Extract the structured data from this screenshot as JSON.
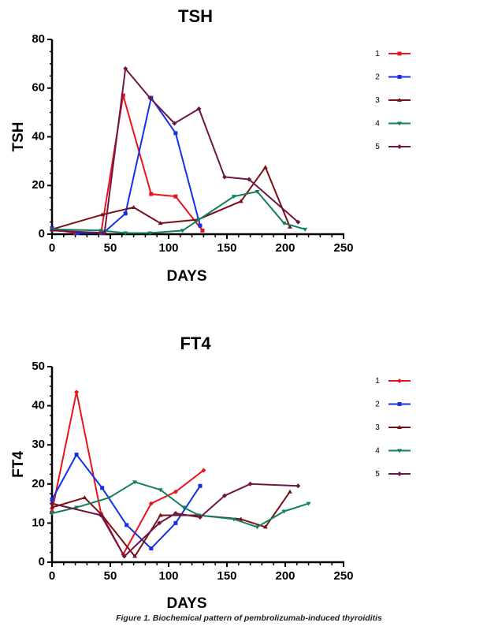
{
  "caption": "Figure 1. Biochemical pattern of pembrolizumab-induced thyroiditis",
  "chart_data": [
    {
      "type": "line",
      "title": "TSH",
      "xlabel": "DAYS",
      "ylabel": "TSH",
      "xlim": [
        0,
        250
      ],
      "ylim": [
        0,
        80
      ],
      "xticks": [
        "0",
        "50",
        "100",
        "150",
        "200",
        "250"
      ],
      "yticks": [
        "0",
        "20",
        "40",
        "60",
        "80"
      ],
      "legend_position": "right",
      "series": [
        {
          "name": "1",
          "color": "#e8141b",
          "marker": "square",
          "points": [
            [
              0,
              2
            ],
            [
              20,
              0.5
            ],
            [
              42,
              0.5
            ],
            [
              61,
              57
            ],
            [
              85,
              16.5
            ],
            [
              106,
              15.5
            ],
            [
              129,
              1.5
            ]
          ]
        },
        {
          "name": "2",
          "color": "#1430e8",
          "marker": "square",
          "points": [
            [
              0,
              2.5
            ],
            [
              22,
              0.5
            ],
            [
              44,
              0.5
            ],
            [
              63,
              8.5
            ],
            [
              85,
              56
            ],
            [
              106,
              41.5
            ],
            [
              127,
              3.5
            ]
          ]
        },
        {
          "name": "3",
          "color": "#7a0f17",
          "marker": "triangle-up",
          "points": [
            [
              0,
              2
            ],
            [
              43,
              8
            ],
            [
              70,
              11
            ],
            [
              93,
              4.5
            ],
            [
              125,
              6
            ],
            [
              162,
              13.5
            ],
            [
              183,
              27.5
            ],
            [
              204,
              3
            ]
          ]
        },
        {
          "name": "4",
          "color": "#11805a",
          "marker": "triangle-down",
          "points": [
            [
              0,
              2
            ],
            [
              42,
              1.5
            ],
            [
              63,
              0.5
            ],
            [
              84,
              0.5
            ],
            [
              112,
              1.5
            ],
            [
              126,
              6
            ],
            [
              156,
              15.5
            ],
            [
              176,
              17.5
            ],
            [
              199,
              4.5
            ],
            [
              217,
              2
            ]
          ]
        },
        {
          "name": "5",
          "color": "#6e1646",
          "marker": "diamond",
          "points": [
            [
              0,
              1.5
            ],
            [
              45,
              0.5
            ],
            [
              63,
              68
            ],
            [
              84,
              56
            ],
            [
              105,
              45.5
            ],
            [
              126,
              51.5
            ],
            [
              148,
              23.5
            ],
            [
              169,
              22.5
            ],
            [
              211,
              5
            ]
          ]
        }
      ]
    },
    {
      "type": "line",
      "title": "FT4",
      "xlabel": "DAYS",
      "ylabel": "FT4",
      "xlim": [
        0,
        250
      ],
      "ylim": [
        0,
        50
      ],
      "xticks": [
        "0",
        "50",
        "100",
        "150",
        "200",
        "250"
      ],
      "yticks": [
        "0",
        "10",
        "20",
        "30",
        "40",
        "50"
      ],
      "legend_position": "right",
      "series": [
        {
          "name": "1",
          "color": "#e8141b",
          "marker": "diamond",
          "points": [
            [
              0,
              13
            ],
            [
              21,
              43.5
            ],
            [
              42,
              12.5
            ],
            [
              61,
              2
            ],
            [
              85,
              15
            ],
            [
              106,
              18
            ],
            [
              130,
              23.5
            ]
          ]
        },
        {
          "name": "2",
          "color": "#1430e8",
          "marker": "square",
          "points": [
            [
              0,
              16
            ],
            [
              21,
              27.5
            ],
            [
              43,
              19
            ],
            [
              64,
              9.5
            ],
            [
              85,
              3.5
            ],
            [
              106,
              10
            ],
            [
              127,
              19.5
            ]
          ]
        },
        {
          "name": "3",
          "color": "#7a0f17",
          "marker": "triangle-up",
          "points": [
            [
              0,
              14
            ],
            [
              28,
              16.5
            ],
            [
              43,
              12
            ],
            [
              71,
              1.5
            ],
            [
              93,
              12
            ],
            [
              125,
              12
            ],
            [
              162,
              11
            ],
            [
              183,
              9
            ],
            [
              204,
              18
            ]
          ]
        },
        {
          "name": "4",
          "color": "#11805a",
          "marker": "triangle-down",
          "points": [
            [
              0,
              12.5
            ],
            [
              21,
              14
            ],
            [
              49,
              16.5
            ],
            [
              71,
              20.5
            ],
            [
              93,
              18.5
            ],
            [
              113,
              14
            ],
            [
              126,
              12
            ],
            [
              156,
              11
            ],
            [
              176,
              9
            ],
            [
              199,
              13
            ],
            [
              220,
              15
            ]
          ]
        },
        {
          "name": "5",
          "color": "#6e1646",
          "marker": "diamond",
          "points": [
            [
              0,
              15
            ],
            [
              42,
              12
            ],
            [
              62,
              1.5
            ],
            [
              92,
              10
            ],
            [
              106,
              12.5
            ],
            [
              127,
              11.5
            ],
            [
              148,
              17
            ],
            [
              170,
              20
            ],
            [
              211,
              19.5
            ]
          ]
        }
      ]
    }
  ]
}
